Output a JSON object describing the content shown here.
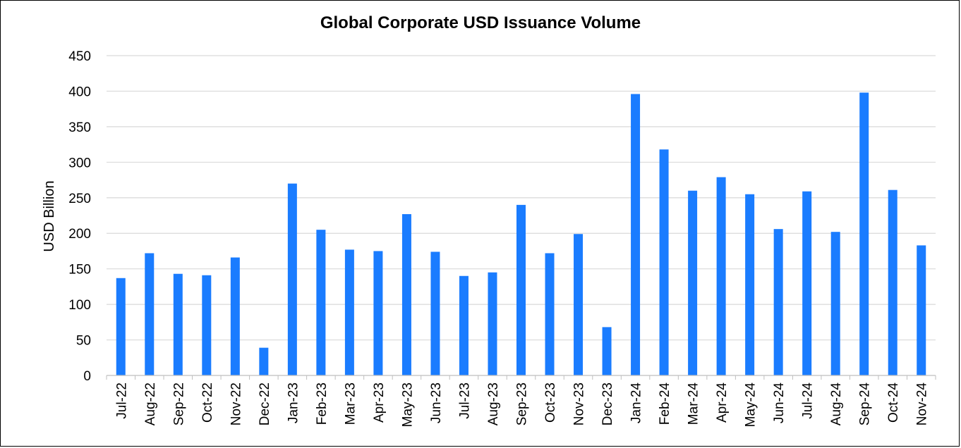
{
  "chart_data": {
    "type": "bar",
    "title": "Global Corporate USD Issuance Volume",
    "xlabel": "",
    "ylabel": "USD Billion",
    "ylim": [
      0,
      450
    ],
    "yticks": [
      0,
      50,
      100,
      150,
      200,
      250,
      300,
      350,
      400,
      450
    ],
    "grid": true,
    "bar_color": "#1a7cff",
    "categories": [
      "Jul-22",
      "Aug-22",
      "Sep-22",
      "Oct-22",
      "Nov-22",
      "Dec-22",
      "Jan-23",
      "Feb-23",
      "Mar-23",
      "Apr-23",
      "May-23",
      "Jun-23",
      "Jul-23",
      "Aug-23",
      "Sep-23",
      "Oct-23",
      "Nov-23",
      "Dec-23",
      "Jan-24",
      "Feb-24",
      "Mar-24",
      "Apr-24",
      "May-24",
      "Jun-24",
      "Jul-24",
      "Aug-24",
      "Sep-24",
      "Oct-24",
      "Nov-24"
    ],
    "values": [
      137,
      172,
      143,
      141,
      166,
      39,
      270,
      205,
      177,
      175,
      227,
      174,
      140,
      145,
      240,
      172,
      199,
      68,
      396,
      318,
      260,
      279,
      255,
      206,
      259,
      202,
      398,
      261,
      183
    ]
  }
}
